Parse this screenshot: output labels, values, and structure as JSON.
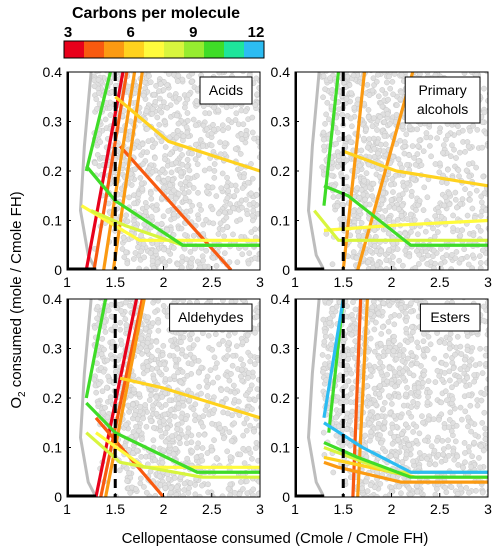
{
  "colorbar": {
    "title": "Carbons per molecule",
    "ticks": [
      "3",
      "6",
      "9",
      "12"
    ],
    "tick_values": [
      3,
      6,
      9,
      12
    ],
    "range": [
      3,
      12
    ],
    "colors": [
      "#e8001b",
      "#f85a10",
      "#fb9a12",
      "#ffd21e",
      "#fffb3c",
      "#d8f53e",
      "#96ec30",
      "#3fdc28",
      "#1ee59b",
      "#2cbcf2"
    ]
  },
  "axes": {
    "xlabel": "Cellopentaose consumed (Cmole / Cmole FH)",
    "ylabel": "O",
    "ylabel_sub": "2",
    "ylabel_rest": " consumed (mole / Cmole FH)",
    "xlim": [
      1,
      3
    ],
    "ylim": [
      0,
      0.4
    ],
    "xticks": [
      "1",
      "1.5",
      "2",
      "2.5",
      "3"
    ],
    "xtick_values": [
      1,
      1.5,
      2,
      2.5,
      3
    ],
    "yticks": [
      "0",
      "0.1",
      "0.2",
      "0.3",
      "0.4"
    ],
    "ytick_values": [
      0,
      0.1,
      0.2,
      0.3,
      0.4
    ],
    "dashed_line_x": 1.5
  },
  "chart_data": [
    {
      "type": "line",
      "title": "Acids",
      "series": [
        {
          "color": "#e8001b",
          "points": [
            [
              1.2,
              0
            ],
            [
              1.58,
              0.4
            ]
          ]
        },
        {
          "color": "#f85a10",
          "points": [
            [
              1.28,
              0
            ],
            [
              1.62,
              0.4
            ]
          ]
        },
        {
          "color": "#f85a10",
          "points": [
            [
              1.55,
              0.25
            ],
            [
              2.7,
              0
            ]
          ]
        },
        {
          "color": "#fb9a12",
          "points": [
            [
              1.38,
              0
            ],
            [
              1.7,
              0.4
            ]
          ]
        },
        {
          "color": "#fb9a12",
          "points": [
            [
              1.48,
              0
            ],
            [
              1.78,
              0.4
            ]
          ]
        },
        {
          "color": "#ffd21e",
          "points": [
            [
              1.5,
              0.35
            ],
            [
              2.05,
              0.26
            ],
            [
              3.0,
              0.2
            ]
          ]
        },
        {
          "color": "#fffb3c",
          "points": [
            [
              1.15,
              0.13
            ],
            [
              1.75,
              0.06
            ],
            [
              3.0,
              0.06
            ]
          ]
        },
        {
          "color": "#d8f53e",
          "points": [
            [
              1.25,
              0.12
            ],
            [
              1.6,
              0.09
            ],
            [
              2.2,
              0.05
            ],
            [
              3.0,
              0.05
            ]
          ]
        },
        {
          "color": "#3fdc28",
          "points": [
            [
              1.2,
              0.2
            ],
            [
              1.45,
              0.4
            ]
          ]
        },
        {
          "color": "#3fdc28",
          "points": [
            [
              1.2,
              0.21
            ],
            [
              1.5,
              0.14
            ],
            [
              2.2,
              0.05
            ],
            [
              3.0,
              0.05
            ]
          ]
        }
      ]
    },
    {
      "type": "line",
      "title": "Primary alcohols",
      "series": [
        {
          "color": "#fb9a12",
          "points": [
            [
              1.5,
              0
            ],
            [
              1.72,
              0.4
            ]
          ]
        },
        {
          "color": "#fb9a12",
          "points": [
            [
              1.65,
              0
            ],
            [
              2.22,
              0.4
            ]
          ]
        },
        {
          "color": "#ffd21e",
          "points": [
            [
              1.5,
              0.24
            ],
            [
              2.05,
              0.2
            ],
            [
              3.0,
              0.17
            ]
          ]
        },
        {
          "color": "#fffb3c",
          "points": [
            [
              1.3,
              0.08
            ],
            [
              2.0,
              0.09
            ],
            [
              3.0,
              0.1
            ]
          ]
        },
        {
          "color": "#d8f53e",
          "points": [
            [
              1.2,
              0.12
            ],
            [
              1.45,
              0.06
            ],
            [
              1.8,
              0.06
            ],
            [
              3.0,
              0.06
            ]
          ]
        },
        {
          "color": "#3fdc28",
          "points": [
            [
              1.3,
              0.13
            ],
            [
              1.45,
              0.4
            ]
          ]
        },
        {
          "color": "#3fdc28",
          "points": [
            [
              1.3,
              0.17
            ],
            [
              1.55,
              0.15
            ],
            [
              2.2,
              0.05
            ],
            [
              3.0,
              0.05
            ]
          ]
        }
      ]
    },
    {
      "type": "line",
      "title": "Aldehydes",
      "series": [
        {
          "color": "#e8001b",
          "points": [
            [
              1.3,
              0
            ],
            [
              1.72,
              0.4
            ]
          ]
        },
        {
          "color": "#f85a10",
          "points": [
            [
              1.35,
              0
            ],
            [
              1.78,
              0.4
            ]
          ]
        },
        {
          "color": "#f85a10",
          "points": [
            [
              1.3,
              0.16
            ],
            [
              2.0,
              0
            ]
          ]
        },
        {
          "color": "#fb9a12",
          "points": [
            [
              1.4,
              0
            ],
            [
              1.8,
              0.4
            ]
          ]
        },
        {
          "color": "#ffd21e",
          "points": [
            [
              1.55,
              0.24
            ],
            [
              2.0,
              0.22
            ],
            [
              3.0,
              0.16
            ]
          ]
        },
        {
          "color": "#fffb3c",
          "points": [
            [
              1.3,
              0.13
            ],
            [
              1.8,
              0.06
            ],
            [
              3.0,
              0.06
            ]
          ]
        },
        {
          "color": "#d8f53e",
          "points": [
            [
              1.2,
              0.13
            ],
            [
              1.55,
              0.07
            ],
            [
              2.4,
              0.04
            ],
            [
              3.0,
              0.04
            ]
          ]
        },
        {
          "color": "#3fdc28",
          "points": [
            [
              1.2,
              0.2
            ],
            [
              1.4,
              0.4
            ]
          ]
        },
        {
          "color": "#3fdc28",
          "points": [
            [
              1.2,
              0.19
            ],
            [
              1.5,
              0.13
            ],
            [
              2.35,
              0.05
            ],
            [
              3.0,
              0.05
            ]
          ]
        }
      ]
    },
    {
      "type": "line",
      "title": "Esters",
      "series": [
        {
          "color": "#f85a10",
          "points": [
            [
              1.6,
              0
            ],
            [
              1.68,
              0.4
            ]
          ]
        },
        {
          "color": "#fb9a12",
          "points": [
            [
              1.65,
              0
            ],
            [
              1.75,
              0.4
            ]
          ]
        },
        {
          "color": "#fb9a12",
          "points": [
            [
              1.3,
              0.07
            ],
            [
              1.45,
              0.06
            ],
            [
              2.1,
              0.03
            ],
            [
              3.0,
              0.03
            ]
          ]
        },
        {
          "color": "#ffd21e",
          "points": [
            [
              1.3,
              0.08
            ],
            [
              2.25,
              0.04
            ],
            [
              3.0,
              0.04
            ]
          ]
        },
        {
          "color": "#d8f53e",
          "points": [
            [
              1.3,
              0.1
            ],
            [
              2.0,
              0.05
            ],
            [
              3.0,
              0.05
            ]
          ]
        },
        {
          "color": "#3fdc28",
          "points": [
            [
              1.35,
              0.13
            ],
            [
              1.5,
              0.4
            ]
          ]
        },
        {
          "color": "#3fdc28",
          "points": [
            [
              1.3,
              0.11
            ],
            [
              1.65,
              0.08
            ],
            [
              2.2,
              0.04
            ],
            [
              3.0,
              0.04
            ]
          ]
        },
        {
          "color": "#2cbcf2",
          "points": [
            [
              1.3,
              0.16
            ],
            [
              1.5,
              0.4
            ]
          ]
        },
        {
          "color": "#2cbcf2",
          "points": [
            [
              1.3,
              0.15
            ],
            [
              1.7,
              0.1
            ],
            [
              2.2,
              0.05
            ],
            [
              3.0,
              0.05
            ]
          ]
        }
      ]
    }
  ]
}
